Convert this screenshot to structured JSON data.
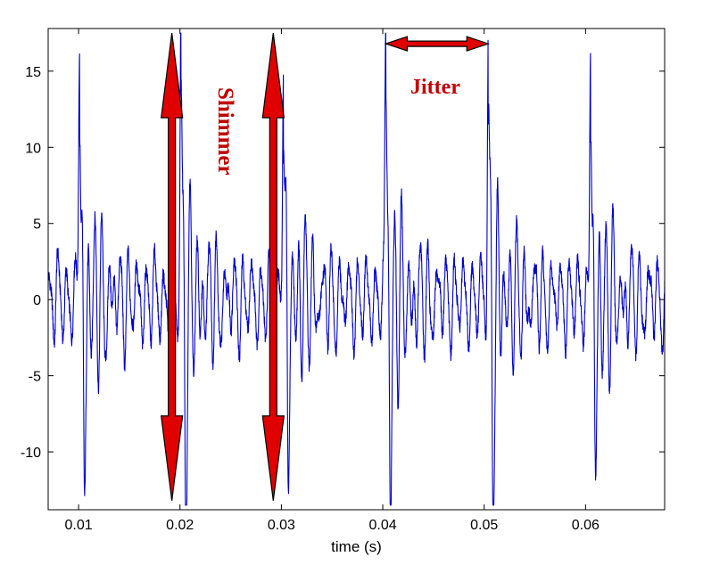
{
  "chart_data": {
    "type": "line",
    "title": "",
    "xlabel": "time (s)",
    "ylabel": "",
    "xlim": [
      0.007,
      0.0678
    ],
    "ylim": [
      -13.8,
      17.8
    ],
    "x_ticks": [
      0.01,
      0.02,
      0.03,
      0.04,
      0.05,
      0.06
    ],
    "x_tick_labels": [
      "0.01",
      "0.02",
      "0.03",
      "0.04",
      "0.05",
      "0.06"
    ],
    "y_ticks": [
      15,
      10,
      5,
      0,
      -5,
      -10
    ],
    "y_tick_labels": [
      "15",
      "10",
      "5",
      "0",
      "-5",
      "-10"
    ],
    "grid": false,
    "line_color": "#0000cc",
    "series": [
      {
        "period": 0.0101,
        "pulse_times": [
          0.0101,
          0.0201,
          0.0302,
          0.0403,
          0.0504,
          0.0605
        ],
        "pulse_peaks": [
          17.5,
          17.2,
          17.3,
          17.0,
          17.2,
          17.3
        ],
        "pulse_troughs": [
          -12.9,
          -12.5,
          -12.7,
          -12.6,
          -12.7,
          -12.7
        ],
        "secondary_peaks": [
          8.0,
          7.5,
          7.8,
          7.5,
          8.0,
          8.0
        ],
        "oscillation_frequency_hz": 1150,
        "baseline_amplitude": 2.3
      }
    ],
    "annotations": [
      {
        "text": "Shimmer",
        "color": "#cc0000"
      },
      {
        "text": "Jitter",
        "color": "#cc0000"
      }
    ],
    "arrows": [
      {
        "kind": "vertical",
        "x": 0.0192,
        "y_from": -13.2,
        "y_to": 17.5
      },
      {
        "kind": "vertical",
        "x": 0.0292,
        "y_from": -13.2,
        "y_to": 17.5
      },
      {
        "kind": "horizontal",
        "y": 16.8,
        "x_from": 0.0403,
        "x_to": 0.0504
      }
    ]
  }
}
